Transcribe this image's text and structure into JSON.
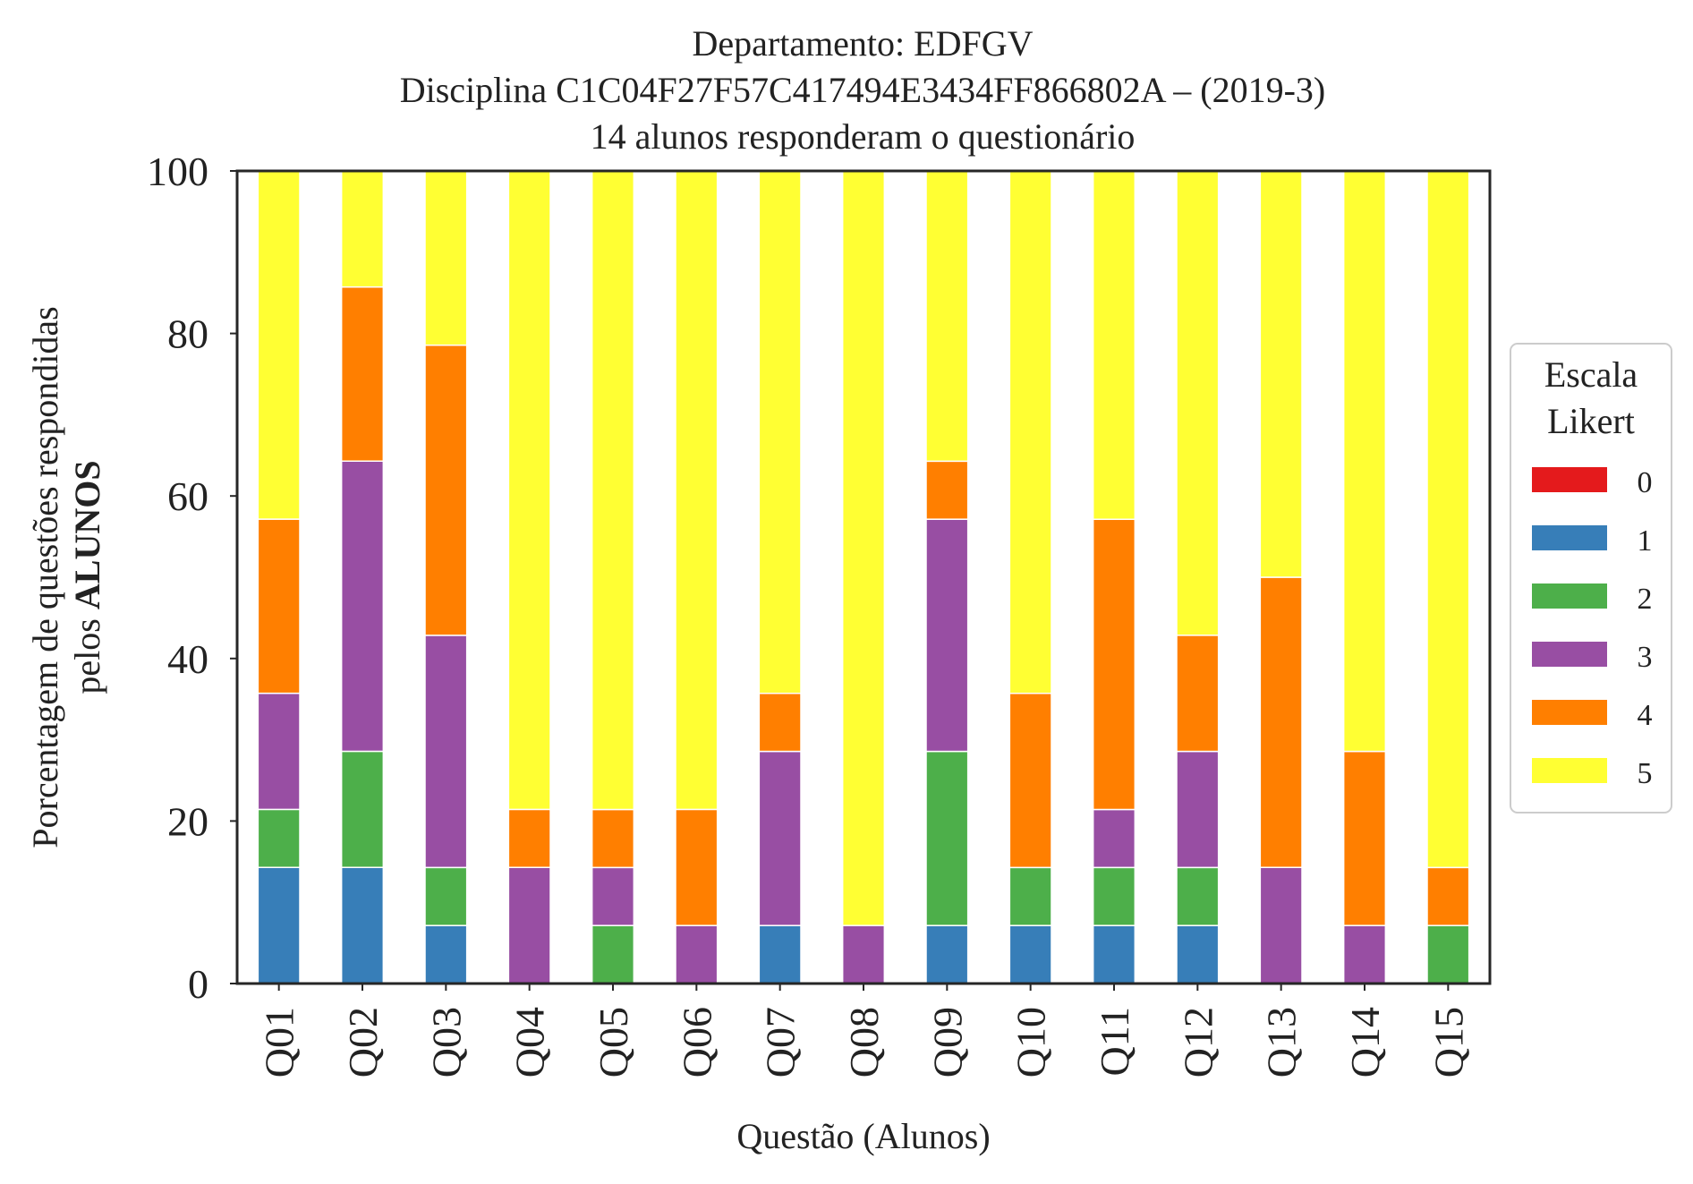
{
  "chart_data": {
    "type": "bar",
    "stacked": true,
    "title": [
      "Departamento: EDFGV",
      "Disciplina C1C04F27F57C417494E3434FF866802A – (2019-3)",
      "14 alunos responderam o questionário"
    ],
    "xlabel": "Questão (Alunos)",
    "ylabel_line1": "Porcentagem de questões respondidas",
    "ylabel_line2_prefix": "pelos ",
    "ylabel_line2_bold": "ALUNOS",
    "ylim": [
      0,
      100
    ],
    "yticks": [
      "0",
      "20",
      "40",
      "60",
      "80",
      "100"
    ],
    "grid": false,
    "legend_position": "right",
    "legend": {
      "title_line1": "Escala",
      "title_line2": "Likert"
    },
    "categories": [
      "Q01",
      "Q02",
      "Q03",
      "Q04",
      "Q05",
      "Q06",
      "Q07",
      "Q08",
      "Q09",
      "Q10",
      "Q11",
      "Q12",
      "Q13",
      "Q14",
      "Q15"
    ],
    "series": [
      {
        "name": "0",
        "color": "#e41a1c",
        "values": [
          0,
          0,
          0,
          0,
          0,
          0,
          0,
          0,
          0,
          0,
          0,
          0,
          0,
          0,
          0
        ]
      },
      {
        "name": "1",
        "color": "#377eb8",
        "values": [
          14.29,
          14.29,
          7.14,
          0,
          0,
          0,
          7.14,
          0,
          7.14,
          7.14,
          7.14,
          7.14,
          0,
          0,
          0
        ]
      },
      {
        "name": "2",
        "color": "#4daf4a",
        "values": [
          7.14,
          14.29,
          7.14,
          0,
          7.14,
          0,
          0,
          0,
          21.43,
          7.14,
          7.14,
          7.14,
          0,
          0,
          7.14
        ]
      },
      {
        "name": "3",
        "color": "#984ea3",
        "values": [
          14.29,
          35.71,
          28.57,
          14.29,
          7.14,
          7.14,
          21.43,
          7.14,
          28.57,
          0,
          7.14,
          14.29,
          14.29,
          7.14,
          0
        ]
      },
      {
        "name": "4",
        "color": "#ff7f00",
        "values": [
          21.43,
          21.43,
          35.71,
          7.14,
          7.14,
          14.29,
          7.14,
          0,
          7.14,
          21.43,
          35.71,
          14.29,
          35.71,
          21.43,
          7.14
        ]
      },
      {
        "name": "5",
        "color": "#ffff33",
        "values": [
          42.86,
          14.29,
          21.43,
          78.57,
          78.57,
          78.57,
          64.29,
          92.86,
          35.71,
          64.29,
          42.86,
          57.14,
          50,
          71.43,
          85.71
        ]
      }
    ]
  }
}
